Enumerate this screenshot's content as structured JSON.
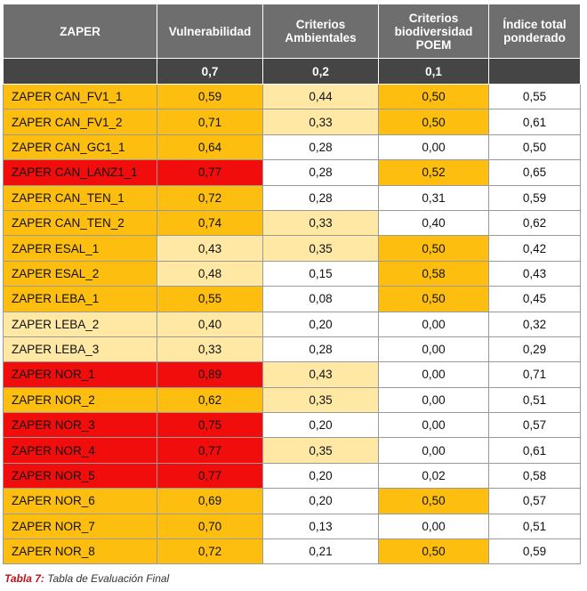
{
  "table": {
    "headers": [
      "ZAPER",
      "Vulnerabilidad",
      "Criterios Ambientales",
      "Criterios biodiversidad POEM",
      "Índice total ponderado"
    ],
    "weights": [
      "",
      "0,7",
      "0,2",
      "0,1",
      ""
    ],
    "colors": {
      "red": "#f20d0d",
      "orange": "#fdbe10",
      "light": "#ffe8a4",
      "white": "#ffffff",
      "header": "#6e6e6e",
      "weight_row": "#454545"
    },
    "rows": [
      {
        "name": "ZAPER CAN_FV1_1",
        "vul": "0,59",
        "amb": "0,44",
        "poem": "0,50",
        "total": "0,55",
        "c": [
          "orange",
          "orange",
          "light",
          "orange",
          "white"
        ]
      },
      {
        "name": "ZAPER CAN_FV1_2",
        "vul": "0,71",
        "amb": "0,33",
        "poem": "0,50",
        "total": "0,61",
        "c": [
          "orange",
          "orange",
          "light",
          "orange",
          "white"
        ]
      },
      {
        "name": "ZAPER CAN_GC1_1",
        "vul": "0,64",
        "amb": "0,28",
        "poem": "0,00",
        "total": "0,50",
        "c": [
          "orange",
          "orange",
          "white",
          "white",
          "white"
        ]
      },
      {
        "name": "ZAPER CAN_LANZ1_1",
        "vul": "0,77",
        "amb": "0,28",
        "poem": "0,52",
        "total": "0,65",
        "c": [
          "red",
          "red",
          "white",
          "orange",
          "white"
        ]
      },
      {
        "name": "ZAPER CAN_TEN_1",
        "vul": "0,72",
        "amb": "0,28",
        "poem": "0,31",
        "total": "0,59",
        "c": [
          "orange",
          "orange",
          "white",
          "white",
          "white"
        ]
      },
      {
        "name": "ZAPER CAN_TEN_2",
        "vul": "0,74",
        "amb": "0,33",
        "poem": "0,40",
        "total": "0,62",
        "c": [
          "orange",
          "orange",
          "light",
          "white",
          "white"
        ]
      },
      {
        "name": "ZAPER ESAL_1",
        "vul": "0,43",
        "amb": "0,35",
        "poem": "0,50",
        "total": "0,42",
        "c": [
          "orange",
          "light",
          "light",
          "orange",
          "white"
        ]
      },
      {
        "name": "ZAPER ESAL_2",
        "vul": "0,48",
        "amb": "0,15",
        "poem": "0,58",
        "total": "0,43",
        "c": [
          "orange",
          "light",
          "white",
          "orange",
          "white"
        ]
      },
      {
        "name": "ZAPER LEBA_1",
        "vul": "0,55",
        "amb": "0,08",
        "poem": "0,50",
        "total": "0,45",
        "c": [
          "orange",
          "orange",
          "white",
          "orange",
          "white"
        ]
      },
      {
        "name": "ZAPER LEBA_2",
        "vul": "0,40",
        "amb": "0,20",
        "poem": "0,00",
        "total": "0,32",
        "c": [
          "light",
          "light",
          "white",
          "white",
          "white"
        ]
      },
      {
        "name": "ZAPER LEBA_3",
        "vul": "0,33",
        "amb": "0,28",
        "poem": "0,00",
        "total": "0,29",
        "c": [
          "light",
          "light",
          "white",
          "white",
          "white"
        ]
      },
      {
        "name": "ZAPER NOR_1",
        "vul": "0,89",
        "amb": "0,43",
        "poem": "0,00",
        "total": "0,71",
        "c": [
          "red",
          "red",
          "light",
          "white",
          "white"
        ]
      },
      {
        "name": "ZAPER NOR_2",
        "vul": "0,62",
        "amb": "0,35",
        "poem": "0,00",
        "total": "0,51",
        "c": [
          "orange",
          "orange",
          "light",
          "white",
          "white"
        ]
      },
      {
        "name": "ZAPER NOR_3",
        "vul": "0,75",
        "amb": "0,20",
        "poem": "0,00",
        "total": "0,57",
        "c": [
          "red",
          "red",
          "white",
          "white",
          "white"
        ]
      },
      {
        "name": "ZAPER NOR_4",
        "vul": "0,77",
        "amb": "0,35",
        "poem": "0,00",
        "total": "0,61",
        "c": [
          "red",
          "red",
          "light",
          "white",
          "white"
        ]
      },
      {
        "name": "ZAPER NOR_5",
        "vul": "0,77",
        "amb": "0,20",
        "poem": "0,02",
        "total": "0,58",
        "c": [
          "red",
          "red",
          "white",
          "white",
          "white"
        ]
      },
      {
        "name": "ZAPER NOR_6",
        "vul": "0,69",
        "amb": "0,20",
        "poem": "0,50",
        "total": "0,57",
        "c": [
          "orange",
          "orange",
          "white",
          "orange",
          "white"
        ]
      },
      {
        "name": "ZAPER NOR_7",
        "vul": "0,70",
        "amb": "0,13",
        "poem": "0,00",
        "total": "0,51",
        "c": [
          "orange",
          "orange",
          "white",
          "white",
          "white"
        ]
      },
      {
        "name": "ZAPER NOR_8",
        "vul": "0,72",
        "amb": "0,21",
        "poem": "0,50",
        "total": "0,59",
        "c": [
          "orange",
          "orange",
          "white",
          "orange",
          "white"
        ]
      }
    ]
  },
  "caption": {
    "label": "Tabla 7:",
    "text": " Tabla de Evaluación Final"
  }
}
